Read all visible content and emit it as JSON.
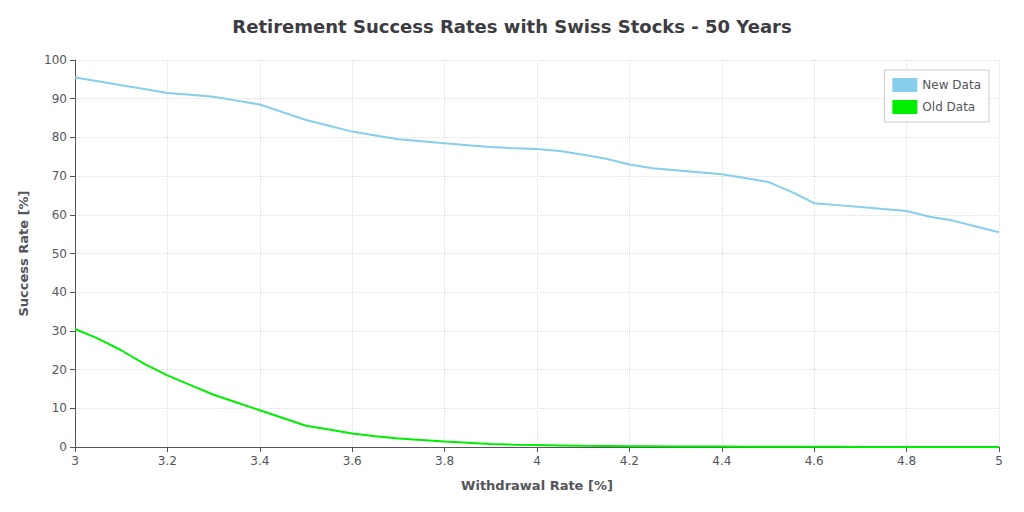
{
  "chart_data": {
    "type": "line",
    "title": "Retirement Success Rates with Swiss Stocks - 50 Years",
    "xlabel": "Withdrawal Rate [%]",
    "ylabel": "Success Rate [%]",
    "xlim": [
      3,
      5
    ],
    "ylim": [
      0,
      100
    ],
    "xticks": [
      3,
      3.2,
      3.4,
      3.6,
      3.8,
      4,
      4.2,
      4.4,
      4.6,
      4.8,
      5
    ],
    "yticks": [
      0,
      10,
      20,
      30,
      40,
      50,
      60,
      70,
      80,
      90,
      100
    ],
    "grid": true,
    "legend": "upper right",
    "x": [
      3.0,
      3.05,
      3.1,
      3.15,
      3.2,
      3.25,
      3.3,
      3.35,
      3.4,
      3.45,
      3.5,
      3.55,
      3.6,
      3.65,
      3.7,
      3.75,
      3.8,
      3.85,
      3.9,
      3.95,
      4.0,
      4.05,
      4.1,
      4.15,
      4.2,
      4.25,
      4.3,
      4.35,
      4.4,
      4.45,
      4.5,
      4.55,
      4.6,
      4.65,
      4.7,
      4.75,
      4.8,
      4.85,
      4.9,
      4.95,
      5.0
    ],
    "series": [
      {
        "name": "New Data",
        "color": "#87CEEB",
        "values": [
          95.5,
          94.5,
          93.5,
          92.5,
          91.5,
          91.0,
          90.5,
          89.5,
          88.5,
          86.5,
          84.5,
          83.0,
          81.5,
          80.5,
          79.5,
          79.0,
          78.5,
          78.0,
          77.5,
          77.2,
          77.0,
          76.5,
          75.5,
          74.5,
          73.0,
          72.0,
          71.5,
          71.0,
          70.5,
          69.5,
          68.5,
          66.0,
          63.0,
          62.5,
          62.0,
          61.5,
          61.0,
          59.5,
          58.5,
          57.0,
          55.5
        ]
      },
      {
        "name": "Old Data",
        "color": "#00EE00",
        "values": [
          30.5,
          28.0,
          25.0,
          21.5,
          18.5,
          16.0,
          13.5,
          11.5,
          9.5,
          7.5,
          5.5,
          4.5,
          3.5,
          2.8,
          2.2,
          1.8,
          1.4,
          1.1,
          0.8,
          0.6,
          0.5,
          0.4,
          0.3,
          0.25,
          0.2,
          0.18,
          0.15,
          0.12,
          0.1,
          0.08,
          0.07,
          0.06,
          0.05,
          0.04,
          0.03,
          0.025,
          0.02,
          0.015,
          0.01,
          0.005,
          0.0
        ]
      }
    ]
  }
}
